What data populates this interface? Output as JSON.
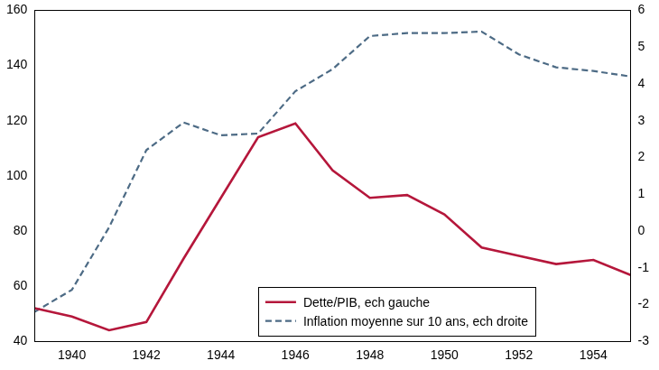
{
  "chart_data": {
    "type": "line",
    "x": [
      1939,
      1940,
      1941,
      1942,
      1943,
      1944,
      1945,
      1946,
      1947,
      1948,
      1949,
      1950,
      1951,
      1952,
      1953,
      1954,
      1955
    ],
    "xlim": [
      1939,
      1955
    ],
    "xticks": [
      1940,
      1942,
      1944,
      1946,
      1948,
      1950,
      1952,
      1954
    ],
    "ylim": [
      40,
      160
    ],
    "yticks": [
      40,
      60,
      80,
      100,
      120,
      140,
      160
    ],
    "y2lim": [
      -3,
      6
    ],
    "y2ticks": [
      -3,
      -2,
      -1,
      0,
      1,
      2,
      3,
      4,
      5,
      6
    ],
    "grid": false,
    "legend": "bottom",
    "series": [
      {
        "name": "Dette/PIB, ech gauche",
        "color": "#b5173b",
        "line_style": "solid",
        "marker": "none",
        "values": [
          52,
          49,
          44,
          47,
          70,
          92,
          114,
          119,
          102,
          92,
          93,
          86,
          74,
          71,
          68,
          69.5,
          64
        ]
      },
      {
        "name": "Inflation moyenne sur 10 ans, ech droite",
        "color": "#4d6b85",
        "line_style": "dashed",
        "marker": "none",
        "axis": "y2",
        "values": [
          -2.2,
          -1.6,
          0.1,
          2.2,
          2.95,
          2.6,
          2.65,
          3.8,
          4.4,
          5.3,
          5.38,
          5.38,
          5.42,
          4.8,
          4.45,
          4.35,
          4.2
        ]
      }
    ]
  }
}
